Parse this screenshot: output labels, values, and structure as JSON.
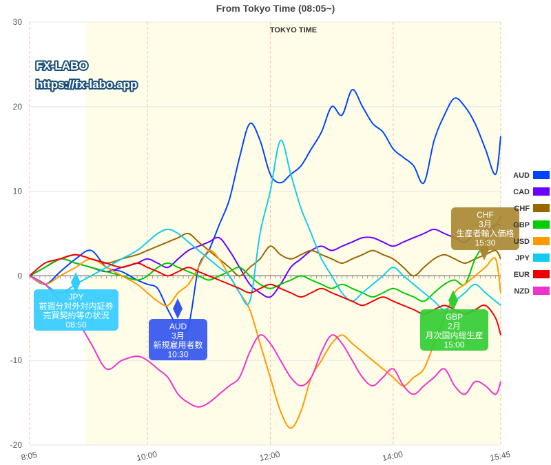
{
  "chart_data": {
    "type": "line",
    "title": "From Tokyo Time  (08:05~)",
    "session_label": "TOKYO TIME",
    "brand": {
      "line1": "FX-LABO",
      "line2": "https://fx-labo.app"
    },
    "ylim": [
      -20,
      30
    ],
    "y_ticks": [
      "30",
      "20",
      "10",
      "0",
      "-10",
      "-20"
    ],
    "y_tick_values": [
      30,
      20,
      10,
      0,
      -10,
      -20
    ],
    "x_ticks": [
      "8:05",
      "10:00",
      "12:00",
      "14:00",
      "15:45"
    ],
    "x_tick_minutes": [
      485,
      600,
      720,
      840,
      945
    ],
    "xlim_minutes": [
      485,
      945
    ],
    "session_minutes": [
      540,
      945
    ],
    "grid": true,
    "legend_position": "right",
    "series": [
      {
        "name": "AUD",
        "color": "#0044ff",
        "x": [
          485,
          500,
          515,
          530,
          545,
          560,
          575,
          590,
          600,
          610,
          620,
          630,
          640,
          650,
          660,
          670,
          680,
          690,
          700,
          710,
          720,
          730,
          740,
          750,
          760,
          770,
          780,
          790,
          800,
          810,
          820,
          830,
          840,
          850,
          860,
          870,
          880,
          890,
          900,
          910,
          920,
          930,
          940,
          945
        ],
        "y": [
          0,
          -1,
          0.5,
          2,
          3,
          1,
          0.5,
          -0.5,
          -1,
          -1.5,
          -4,
          -6,
          -6,
          1,
          3,
          6,
          9,
          14,
          18,
          16,
          12,
          11,
          12,
          13,
          15,
          17,
          20,
          19,
          22,
          20,
          18,
          17,
          15,
          14,
          13,
          11,
          16,
          19,
          21,
          20,
          18,
          15,
          12,
          16.5
        ]
      },
      {
        "name": "CAD",
        "color": "#6a00ff",
        "x": [
          485,
          500,
          515,
          530,
          545,
          560,
          575,
          590,
          600,
          610,
          620,
          630,
          640,
          650,
          660,
          670,
          680,
          690,
          700,
          710,
          720,
          730,
          740,
          750,
          760,
          770,
          780,
          790,
          800,
          810,
          820,
          830,
          840,
          850,
          860,
          870,
          880,
          890,
          900,
          910,
          920,
          930,
          940,
          945
        ],
        "y": [
          0,
          1,
          2,
          1.5,
          1,
          0.5,
          1,
          1.5,
          2,
          1.5,
          1,
          2,
          3,
          3.5,
          4,
          4.5,
          3,
          1,
          -1,
          -2,
          -2.5,
          -1,
          1,
          2,
          3,
          3.5,
          3,
          3.5,
          4,
          4.5,
          4.5,
          4,
          3.5,
          4,
          4.5,
          5,
          5.5,
          5,
          4.5,
          4,
          5,
          5.5,
          6,
          6
        ]
      },
      {
        "name": "CHF",
        "color": "#996600",
        "x": [
          485,
          500,
          515,
          530,
          545,
          560,
          575,
          590,
          600,
          610,
          620,
          630,
          640,
          650,
          660,
          670,
          680,
          690,
          700,
          710,
          720,
          730,
          740,
          750,
          760,
          770,
          780,
          790,
          800,
          810,
          820,
          830,
          840,
          850,
          860,
          870,
          880,
          890,
          900,
          910,
          920,
          930,
          940,
          945
        ],
        "y": [
          0,
          1,
          2,
          2.5,
          2,
          1.5,
          2,
          2.5,
          3,
          3.5,
          4,
          4.5,
          5,
          4,
          3,
          2,
          1,
          0,
          1,
          2,
          3.5,
          2.5,
          2,
          2.5,
          3,
          2.5,
          2,
          1.5,
          2,
          2.5,
          3,
          2.5,
          2,
          1,
          0,
          1,
          2,
          2.5,
          2,
          1.5,
          2,
          2.5,
          3,
          2
        ]
      },
      {
        "name": "GBP",
        "color": "#00cc00",
        "x": [
          485,
          500,
          515,
          530,
          545,
          560,
          575,
          590,
          600,
          610,
          620,
          630,
          640,
          650,
          660,
          670,
          680,
          690,
          700,
          710,
          720,
          730,
          740,
          750,
          760,
          770,
          780,
          790,
          800,
          810,
          820,
          830,
          840,
          850,
          860,
          870,
          880,
          890,
          900,
          910,
          920,
          930,
          940,
          945
        ],
        "y": [
          0,
          1,
          2,
          1.5,
          1,
          0.5,
          0,
          -0.5,
          0,
          1,
          1.5,
          1,
          0.5,
          0,
          -0.5,
          0,
          0.5,
          1,
          0,
          -1,
          -1.5,
          -1,
          -0.5,
          0,
          -0.5,
          -1,
          -1.5,
          -1,
          -1.5,
          -2,
          -2.5,
          -2,
          -1.5,
          -2,
          -2.5,
          -3,
          -2,
          -1,
          -0.5,
          -1,
          2,
          4,
          6,
          7
        ]
      },
      {
        "name": "USD",
        "color": "#ff9900",
        "x": [
          485,
          500,
          515,
          530,
          545,
          560,
          575,
          590,
          600,
          610,
          620,
          630,
          640,
          650,
          660,
          670,
          680,
          690,
          700,
          710,
          720,
          730,
          740,
          750,
          760,
          770,
          780,
          790,
          800,
          810,
          820,
          830,
          840,
          850,
          860,
          870,
          880,
          890,
          900,
          910,
          920,
          930,
          940,
          945
        ],
        "y": [
          0,
          -1,
          0,
          1,
          2,
          1,
          0,
          -1,
          -2,
          -3,
          -3.5,
          -2,
          -1,
          1,
          3,
          2,
          0,
          -2,
          -4,
          -8,
          -12,
          -16,
          -18,
          -16,
          -12,
          -10,
          -8,
          -7,
          -8,
          -9,
          -10,
          -11,
          -12,
          -13,
          -12,
          -11,
          -8,
          -5,
          -2,
          -1,
          0,
          1,
          2,
          -2
        ]
      },
      {
        "name": "JPY",
        "color": "#11ccee",
        "x": [
          485,
          500,
          515,
          530,
          545,
          560,
          575,
          590,
          600,
          610,
          620,
          630,
          640,
          650,
          660,
          670,
          680,
          690,
          700,
          710,
          720,
          730,
          740,
          750,
          760,
          770,
          780,
          790,
          800,
          810,
          820,
          830,
          840,
          850,
          860,
          870,
          880,
          890,
          900,
          910,
          920,
          930,
          940,
          945
        ],
        "y": [
          0,
          -1,
          -2,
          -1,
          0,
          1,
          2,
          3,
          4,
          5,
          5.5,
          5,
          4,
          3,
          2,
          1,
          0,
          -2,
          -3,
          5,
          10,
          16,
          12,
          8,
          5,
          2,
          0,
          -2,
          -3,
          -2,
          -1,
          0,
          1,
          0,
          -1,
          -2,
          -3,
          -4,
          -3,
          -2,
          -1,
          -2,
          -3,
          -3.5
        ]
      },
      {
        "name": "EUR",
        "color": "#ee0000",
        "x": [
          485,
          500,
          515,
          530,
          545,
          560,
          575,
          590,
          600,
          610,
          620,
          630,
          640,
          650,
          660,
          670,
          680,
          690,
          700,
          710,
          720,
          730,
          740,
          750,
          760,
          770,
          780,
          790,
          800,
          810,
          820,
          830,
          840,
          850,
          860,
          870,
          880,
          890,
          900,
          910,
          920,
          930,
          940,
          945
        ],
        "y": [
          0,
          1.5,
          2,
          2.5,
          2,
          1.5,
          1,
          1.5,
          1,
          0.5,
          0,
          0.5,
          1,
          0.5,
          0,
          -0.5,
          -1,
          -1.5,
          -2,
          -1.5,
          -1,
          -1.5,
          -2,
          -2.5,
          -2,
          -1.5,
          -2,
          -2.5,
          -3,
          -3.5,
          -3,
          -2.5,
          -3,
          -3.5,
          -4,
          -4.5,
          -4,
          -3.5,
          -4,
          -4.5,
          -4,
          -3.5,
          -5,
          -7
        ]
      },
      {
        "name": "NZD",
        "color": "#ee33cc",
        "x": [
          485,
          500,
          515,
          530,
          545,
          560,
          575,
          590,
          600,
          610,
          620,
          630,
          640,
          650,
          660,
          670,
          680,
          690,
          700,
          710,
          720,
          730,
          740,
          750,
          760,
          770,
          780,
          790,
          800,
          810,
          820,
          830,
          840,
          850,
          860,
          870,
          880,
          890,
          900,
          910,
          920,
          930,
          940,
          945
        ],
        "y": [
          0,
          -1,
          -3,
          -5,
          -8,
          -11,
          -10,
          -9.5,
          -10,
          -11,
          -12,
          -14,
          -15,
          -15.5,
          -15,
          -14,
          -13,
          -12,
          -9,
          -7,
          -8,
          -10,
          -12,
          -13,
          -12,
          -9,
          -7,
          -8,
          -10,
          -12,
          -13,
          -12,
          -11,
          -13,
          -14,
          -13,
          -12,
          -11,
          -13,
          -14,
          -12.5,
          -13,
          -14,
          -12.5
        ]
      }
    ],
    "annotations": [
      {
        "currency": "JPY",
        "detail1": "前週分対外対内証券",
        "detail2": "売買契約等の状況",
        "time": "08:50",
        "color": "#33ccff"
      },
      {
        "currency": "AUD",
        "detail1": "3月",
        "detail2": "新規雇用者数",
        "time": "10:30",
        "color": "#3355ee"
      },
      {
        "currency": "GBP",
        "detail1": "2月",
        "detail2": "月次国内総生産",
        "time": "15:00",
        "color": "#33cc33"
      },
      {
        "currency": "CHF",
        "detail1": "3月",
        "detail2": "生産者輸入価格",
        "time": "15:30",
        "color": "#aa8833"
      }
    ]
  }
}
